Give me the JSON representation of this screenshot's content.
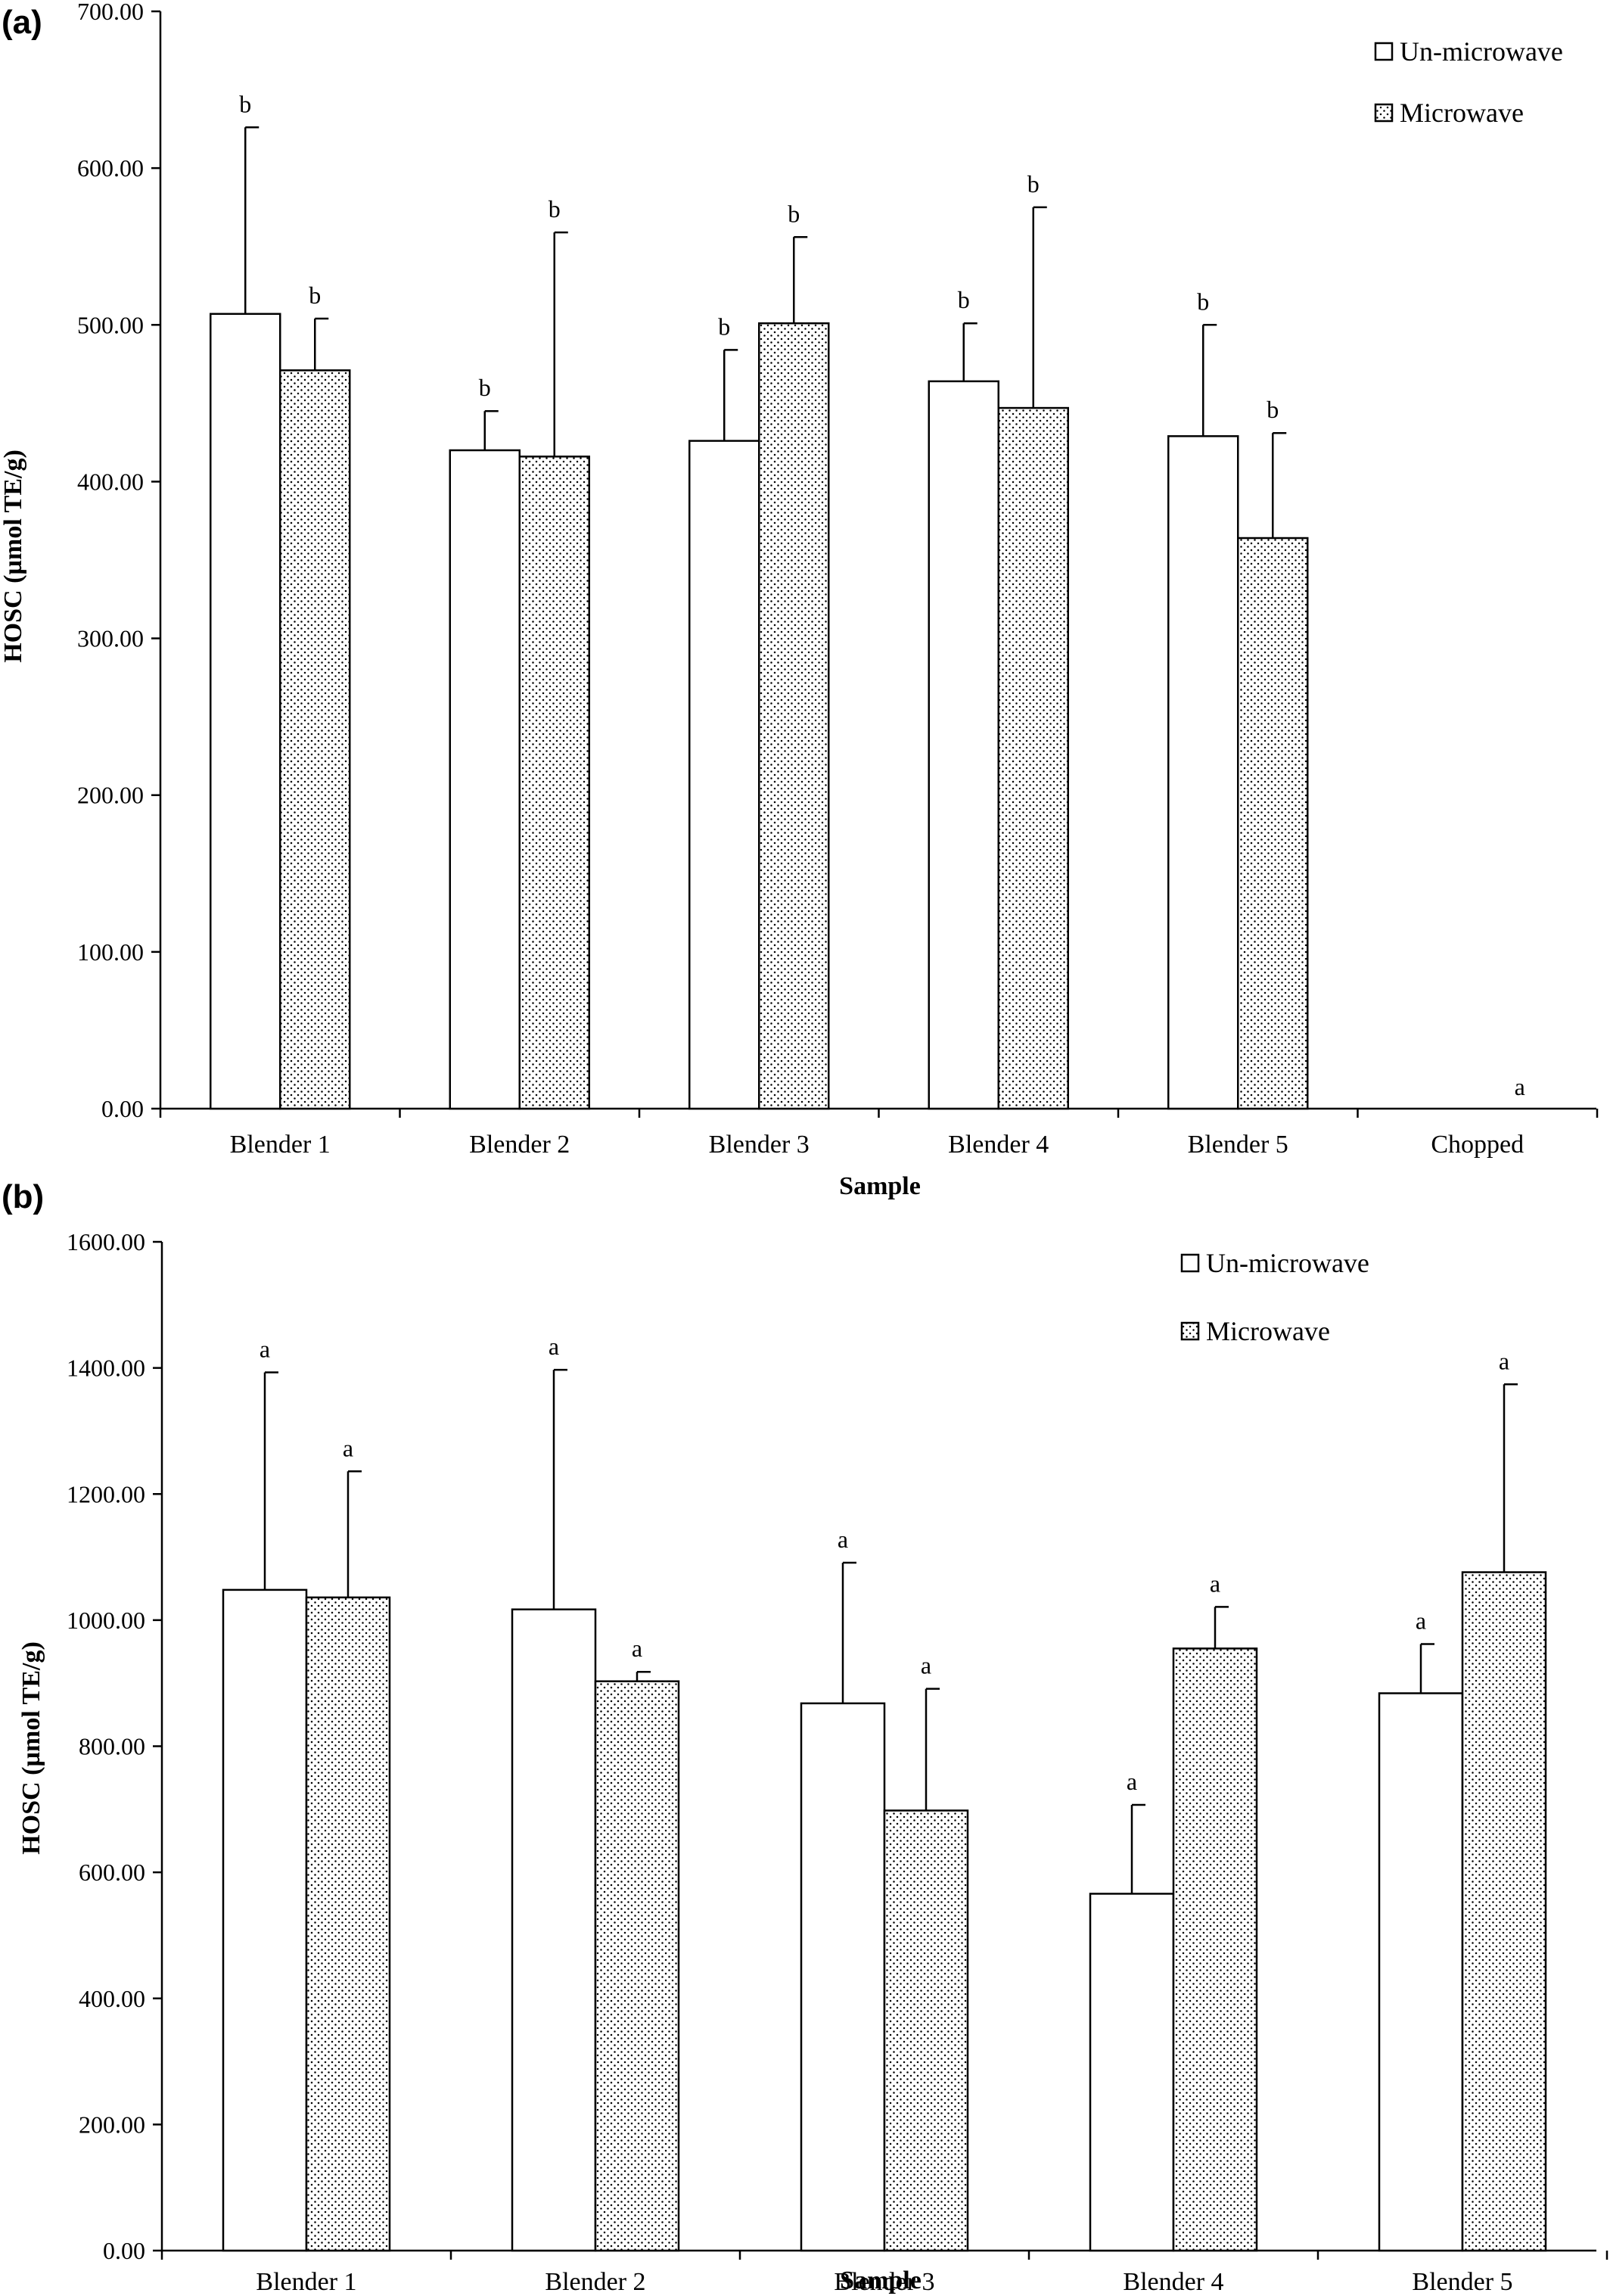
{
  "chart_data": [
    {
      "panel": "(a)",
      "type": "bar",
      "xlabel": "Sample",
      "ylabel": "HOSC (µmol TE/g)",
      "ylim": [
        0,
        700
      ],
      "yticks": [
        "0.00",
        "100.00",
        "200.00",
        "300.00",
        "400.00",
        "500.00",
        "600.00",
        "700.00"
      ],
      "categories": [
        "Blender 1",
        "Blender 2",
        "Blender 3",
        "Blender 4",
        "Blender 5",
        "Chopped"
      ],
      "legend": [
        "Un-microwave",
        "Microwave"
      ],
      "legend_position": "top-right",
      "grid": false,
      "series": [
        {
          "name": "Un-microwave",
          "values": [
            507,
            420,
            426,
            464,
            429,
            0
          ],
          "errors": [
            119,
            25,
            58,
            37,
            71,
            0
          ],
          "labels": [
            "b",
            "b",
            "b",
            "b",
            "b",
            ""
          ]
        },
        {
          "name": "Microwave",
          "values": [
            471,
            416,
            501,
            447,
            364,
            0
          ],
          "errors": [
            33,
            143,
            55,
            128,
            67,
            0
          ],
          "labels": [
            "b",
            "b",
            "b",
            "b",
            "b",
            "a"
          ]
        }
      ]
    },
    {
      "panel": "(b)",
      "type": "bar",
      "xlabel": "Sample",
      "ylabel": "HOSC (µmol TE/g)",
      "ylim": [
        0,
        1600
      ],
      "yticks": [
        "0.00",
        "200.00",
        "400.00",
        "600.00",
        "800.00",
        "1000.00",
        "1200.00",
        "1400.00",
        "1600.00"
      ],
      "categories": [
        "Blender 1",
        "Blender 2",
        "Blender 3",
        "Blender 4",
        "Blender 5"
      ],
      "legend": [
        "Un-microwave",
        "Microwave"
      ],
      "legend_position": "top-right",
      "grid": false,
      "series": [
        {
          "name": "Un-microwave",
          "values": [
            1048,
            1017,
            868,
            566,
            884
          ],
          "errors": [
            345,
            380,
            223,
            141,
            78
          ],
          "labels": [
            "a",
            "a",
            "a",
            "a",
            "a"
          ]
        },
        {
          "name": "Microwave",
          "values": [
            1036,
            903,
            698,
            955,
            1076
          ],
          "errors": [
            200,
            15,
            193,
            66,
            298
          ],
          "labels": [
            "a",
            "a",
            "a",
            "a",
            "a"
          ]
        }
      ]
    }
  ]
}
